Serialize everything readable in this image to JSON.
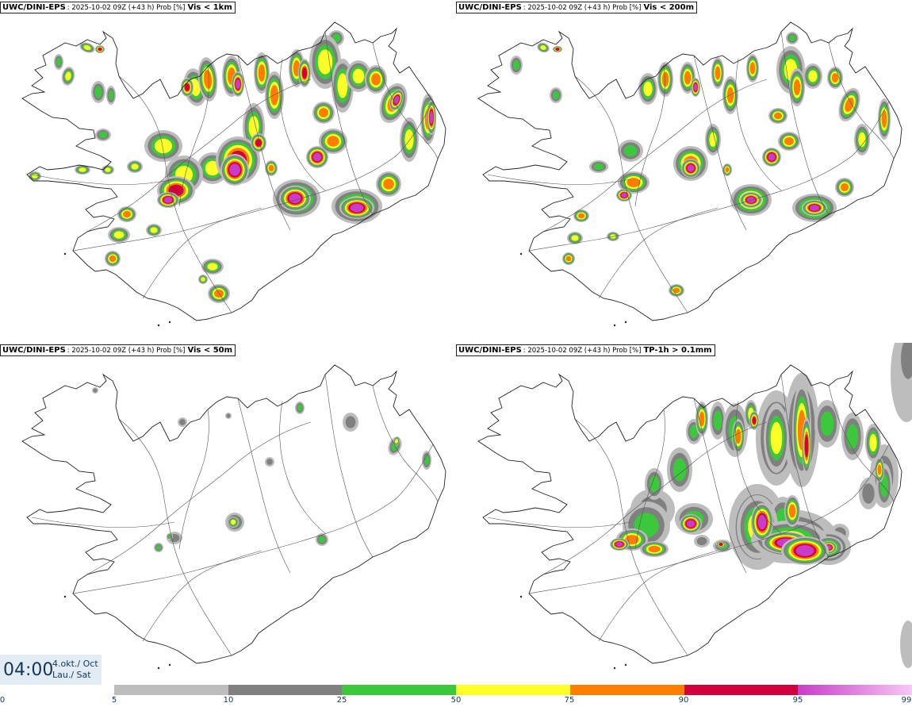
{
  "panels": [
    {
      "model": "UWC/DINI-EPS",
      "meta": ": 2025-10-02 09Z (+43 h) Prob [%]",
      "param": "Vis < 1km",
      "field": "vis1km"
    },
    {
      "model": "UWC/DINI-EPS",
      "meta": ": 2025-10-02 09Z (+43 h) Prob [%]",
      "param": "Vis < 200m",
      "field": "vis200m"
    },
    {
      "model": "UWC/DINI-EPS",
      "meta": ": 2025-10-02 09Z (+43 h) Prob [%]",
      "param": "Vis < 50m",
      "field": "vis50m"
    },
    {
      "model": "UWC/DINI-EPS",
      "meta": ": 2025-10-02 09Z (+43 h) Prob [%]",
      "param": "TP-1h > 0.1mm",
      "field": "precip"
    }
  ],
  "valid_time": {
    "time": "04:00",
    "date_line1": "4.okt./ Oct",
    "date_line2": "Lau./ Sat"
  },
  "colorbar": {
    "tick_labels": [
      "0",
      "5",
      "10",
      "25",
      "50",
      "75",
      "90",
      "95",
      "99"
    ],
    "colors": [
      "#bdbdbd",
      "#808080",
      "#3cc83c",
      "#ffff28",
      "#ff7d00",
      "#d2003c",
      "#c83cc8"
    ]
  }
}
